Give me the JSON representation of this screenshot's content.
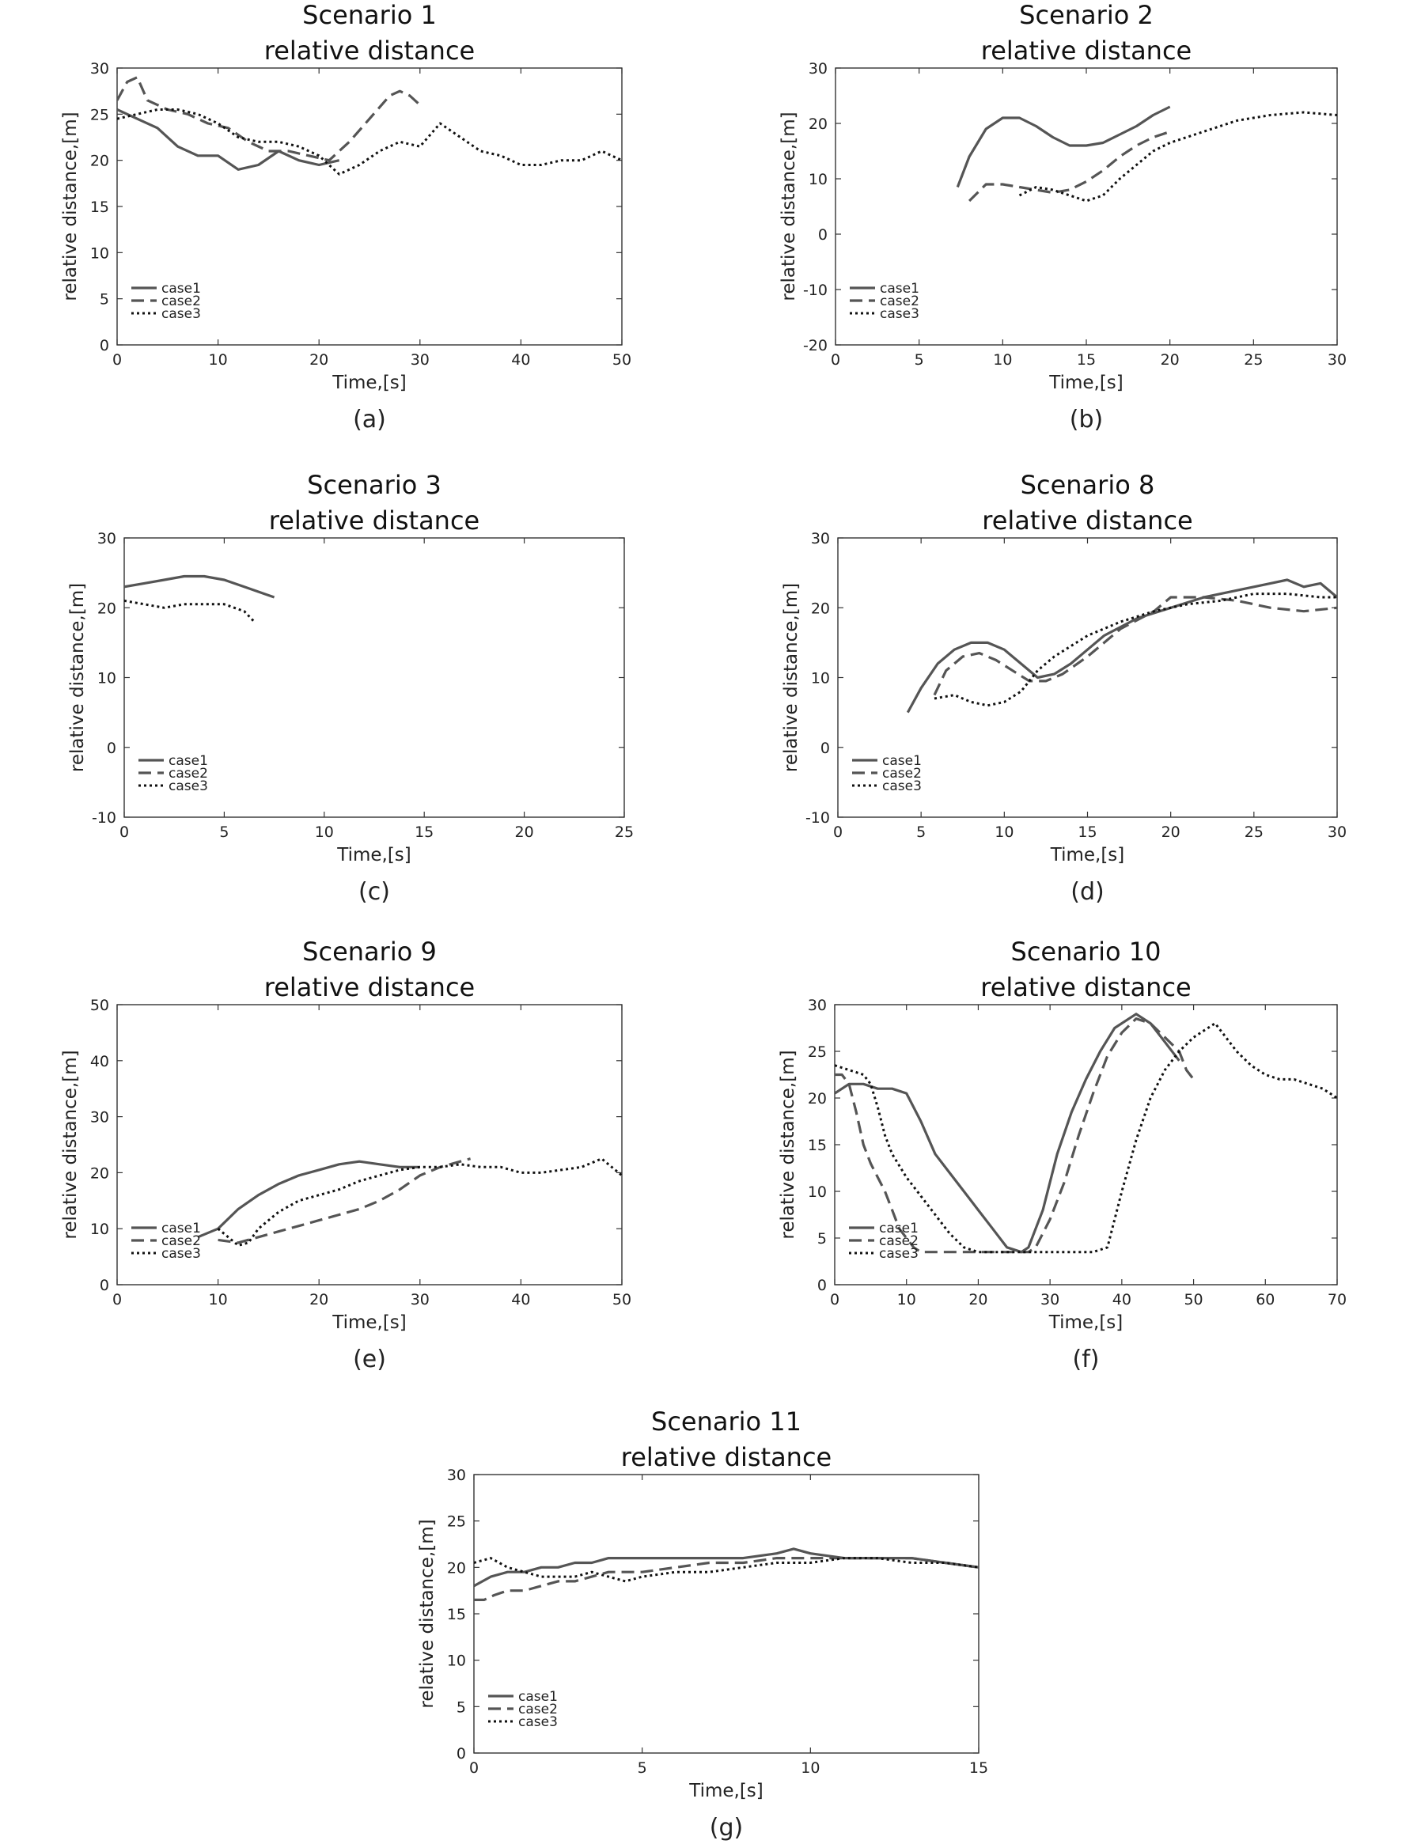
{
  "colors": {
    "case1": "#555555",
    "case2": "#555555",
    "case3": "#111111",
    "axes": "#333333"
  },
  "chart_data": [
    {
      "type": "line",
      "caption": "(a)",
      "title": [
        "Scenario 1",
        "relative distance"
      ],
      "xlabel": "Time,[s]",
      "ylabel": "relative distance,[m]",
      "xlim": [
        0,
        50
      ],
      "ylim": [
        0,
        30
      ],
      "xticks": [
        0,
        10,
        20,
        30,
        40,
        50
      ],
      "yticks": [
        0,
        5,
        10,
        15,
        20,
        25,
        30
      ],
      "grid": false,
      "legend_position": "bottom-left",
      "series": [
        {
          "name": "case1",
          "style": "solid",
          "x": [
            0,
            2,
            4,
            6,
            8,
            10,
            12,
            14,
            16,
            18,
            20,
            22
          ],
          "y": [
            25.5,
            24.5,
            23.5,
            21.5,
            20.5,
            20.5,
            19.0,
            19.5,
            21.0,
            20.0,
            19.5,
            20.0
          ]
        },
        {
          "name": "case2",
          "style": "dashed",
          "x": [
            0,
            1,
            2,
            3,
            5,
            7,
            9,
            11,
            13,
            15,
            17,
            19,
            21,
            23,
            25,
            27,
            28,
            29,
            30
          ],
          "y": [
            26.5,
            28.5,
            29.0,
            26.5,
            25.5,
            25.0,
            24.0,
            23.5,
            22.0,
            21.0,
            21.0,
            20.5,
            20.0,
            22.0,
            24.5,
            27.0,
            27.5,
            27.0,
            26.0
          ]
        },
        {
          "name": "case3",
          "style": "dotted",
          "x": [
            0,
            2,
            4,
            6,
            8,
            10,
            12,
            14,
            16,
            18,
            20,
            22,
            24,
            26,
            28,
            30,
            32,
            34,
            36,
            38,
            40,
            42,
            44,
            46,
            48,
            50
          ],
          "y": [
            24.5,
            25.0,
            25.5,
            25.5,
            25.0,
            24.0,
            22.5,
            22.0,
            22.0,
            21.5,
            20.5,
            18.5,
            19.5,
            21.0,
            22.0,
            21.5,
            24.0,
            22.5,
            21.0,
            20.5,
            19.5,
            19.5,
            20.0,
            20.0,
            21.0,
            20.0
          ]
        }
      ]
    },
    {
      "type": "line",
      "caption": "(b)",
      "title": [
        "Scenario 2",
        "relative distance"
      ],
      "xlabel": "Time,[s]",
      "ylabel": "relative distance,[m]",
      "xlim": [
        0,
        30
      ],
      "ylim": [
        -20,
        30
      ],
      "xticks": [
        0,
        5,
        10,
        15,
        20,
        25,
        30
      ],
      "yticks": [
        -20,
        -10,
        0,
        10,
        20,
        30
      ],
      "grid": false,
      "legend_position": "bottom-left",
      "series": [
        {
          "name": "case1",
          "style": "solid",
          "x": [
            7.3,
            8,
            9,
            10,
            11,
            12,
            13,
            14,
            15,
            16,
            17,
            18,
            19,
            20
          ],
          "y": [
            8.5,
            14.0,
            19.0,
            21.0,
            21.0,
            19.5,
            17.5,
            16.0,
            16.0,
            16.5,
            18.0,
            19.5,
            21.5,
            23.0
          ]
        },
        {
          "name": "case2",
          "style": "dashed",
          "x": [
            8,
            9,
            10,
            11,
            12,
            13,
            14,
            15,
            16,
            17,
            18,
            19,
            20
          ],
          "y": [
            6.0,
            9.0,
            9.0,
            8.5,
            8.0,
            7.5,
            8.0,
            9.5,
            11.5,
            14.0,
            16.0,
            17.5,
            18.5
          ]
        },
        {
          "name": "case3",
          "style": "dotted",
          "x": [
            11,
            12,
            13,
            14,
            15,
            16,
            17,
            18,
            19,
            20,
            22,
            24,
            26,
            28,
            30
          ],
          "y": [
            7.0,
            8.5,
            8.0,
            7.0,
            6.0,
            7.0,
            10.0,
            12.5,
            15.0,
            16.5,
            18.5,
            20.5,
            21.5,
            22.0,
            21.5
          ]
        }
      ]
    },
    {
      "type": "line",
      "caption": "(c)",
      "title": [
        "Scenario 3",
        "relative distance"
      ],
      "xlabel": "Time,[s]",
      "ylabel": "relative distance,[m]",
      "xlim": [
        0,
        25
      ],
      "ylim": [
        -10,
        30
      ],
      "xticks": [
        0,
        5,
        10,
        15,
        20,
        25
      ],
      "yticks": [
        -10,
        0,
        10,
        20,
        30
      ],
      "grid": false,
      "legend_position": "bottom-left",
      "series": [
        {
          "name": "case1",
          "style": "solid",
          "x": [
            0,
            1,
            2,
            3,
            4,
            5,
            6,
            7,
            7.5
          ],
          "y": [
            23.0,
            23.5,
            24.0,
            24.5,
            24.5,
            24.0,
            23.0,
            22.0,
            21.5
          ]
        },
        {
          "name": "case2",
          "style": "dashed",
          "x": [],
          "y": []
        },
        {
          "name": "case3",
          "style": "dotted",
          "x": [
            0,
            1,
            2,
            3,
            4,
            5,
            6,
            6.5
          ],
          "y": [
            21.0,
            20.5,
            20.0,
            20.5,
            20.5,
            20.5,
            19.5,
            18.0
          ]
        }
      ]
    },
    {
      "type": "line",
      "caption": "(d)",
      "title": [
        "Scenario 8",
        "relative distance"
      ],
      "xlabel": "Time,[s]",
      "ylabel": "relative distance,[m]",
      "xlim": [
        0,
        30
      ],
      "ylim": [
        -10,
        30
      ],
      "xticks": [
        0,
        5,
        10,
        15,
        20,
        25,
        30
      ],
      "yticks": [
        -10,
        0,
        10,
        20,
        30
      ],
      "grid": false,
      "legend_position": "bottom-left",
      "series": [
        {
          "name": "case1",
          "style": "solid",
          "x": [
            4.2,
            5,
            6,
            7,
            8,
            9,
            10,
            11,
            12,
            13,
            14,
            15,
            16,
            18,
            20,
            22,
            24,
            26,
            27,
            28,
            29,
            30
          ],
          "y": [
            5.0,
            8.5,
            12.0,
            14.0,
            15.0,
            15.0,
            14.0,
            12.0,
            10.0,
            10.5,
            12.0,
            14.0,
            16.0,
            18.5,
            20.0,
            21.5,
            22.5,
            23.5,
            24.0,
            23.0,
            23.5,
            21.5
          ]
        },
        {
          "name": "case2",
          "style": "dashed",
          "x": [
            5.8,
            6.5,
            7.5,
            8.5,
            9.5,
            10.5,
            11.5,
            12.5,
            13.5,
            15,
            17,
            19,
            20,
            22,
            24,
            26,
            28,
            30
          ],
          "y": [
            7.5,
            11.0,
            13.0,
            13.5,
            12.5,
            11.0,
            9.5,
            9.5,
            10.5,
            13.0,
            17.0,
            19.5,
            21.5,
            21.5,
            21.0,
            20.0,
            19.5,
            20.0
          ]
        },
        {
          "name": "case3",
          "style": "dotted",
          "x": [
            5.8,
            7,
            8,
            9,
            10,
            11,
            12,
            13,
            15,
            17,
            19,
            21,
            23,
            25,
            27,
            29,
            30
          ],
          "y": [
            7.0,
            7.5,
            6.5,
            6.0,
            6.5,
            8.0,
            11.0,
            13.0,
            16.0,
            18.0,
            19.5,
            20.5,
            21.0,
            22.0,
            22.0,
            21.5,
            21.5
          ]
        }
      ]
    },
    {
      "type": "line",
      "caption": "(e)",
      "title": [
        "Scenario 9",
        "relative distance"
      ],
      "xlabel": "Time,[s]",
      "ylabel": "relative distance,[m]",
      "xlim": [
        0,
        50
      ],
      "ylim": [
        0,
        50
      ],
      "xticks": [
        0,
        10,
        20,
        30,
        40,
        50
      ],
      "yticks": [
        0,
        10,
        20,
        30,
        40,
        50
      ],
      "grid": false,
      "legend_position": "bottom-left",
      "series": [
        {
          "name": "case1",
          "style": "solid",
          "x": [
            8,
            10,
            12,
            14,
            16,
            18,
            20,
            22,
            24,
            26,
            28,
            30
          ],
          "y": [
            8.5,
            10.0,
            13.5,
            16.0,
            18.0,
            19.5,
            20.5,
            21.5,
            22.0,
            21.5,
            21.0,
            21.0
          ]
        },
        {
          "name": "case2",
          "style": "dashed",
          "x": [
            10,
            12,
            14,
            16,
            18,
            20,
            22,
            24,
            26,
            28,
            30,
            32,
            34,
            35
          ],
          "y": [
            8.0,
            7.5,
            8.5,
            9.5,
            10.5,
            11.5,
            12.5,
            13.5,
            15.0,
            17.0,
            19.5,
            21.0,
            22.0,
            22.5
          ]
        },
        {
          "name": "case3",
          "style": "dotted",
          "x": [
            10,
            11,
            12,
            13,
            14,
            16,
            18,
            20,
            22,
            24,
            26,
            28,
            30,
            32,
            34,
            36,
            38,
            40,
            42,
            44,
            46,
            48,
            50
          ],
          "y": [
            10.0,
            8.5,
            7.0,
            7.5,
            10.0,
            13.0,
            15.0,
            16.0,
            17.0,
            18.5,
            19.5,
            20.5,
            21.0,
            21.0,
            21.5,
            21.0,
            21.0,
            20.0,
            20.0,
            20.5,
            21.0,
            22.5,
            19.5
          ]
        }
      ]
    },
    {
      "type": "line",
      "caption": "(f)",
      "title": [
        "Scenario 10",
        "relative distance"
      ],
      "xlabel": "Time,[s]",
      "ylabel": "relative distance,[m]",
      "xlim": [
        0,
        70
      ],
      "ylim": [
        0,
        30
      ],
      "xticks": [
        0,
        10,
        20,
        30,
        40,
        50,
        60,
        70
      ],
      "yticks": [
        0,
        5,
        10,
        15,
        20,
        25,
        30
      ],
      "grid": false,
      "legend_position": "bottom-left",
      "series": [
        {
          "name": "case1",
          "style": "solid",
          "x": [
            0,
            2,
            4,
            6,
            8,
            10,
            12,
            14,
            16,
            18,
            20,
            22,
            24,
            26,
            27,
            29,
            31,
            33,
            35,
            37,
            39,
            41,
            42,
            44,
            46,
            48
          ],
          "y": [
            20.5,
            21.5,
            21.5,
            21.0,
            21.0,
            20.5,
            17.5,
            14.0,
            12.0,
            10.0,
            8.0,
            6.0,
            4.0,
            3.5,
            4.0,
            8.0,
            14.0,
            18.5,
            22.0,
            25.0,
            27.5,
            28.5,
            29.0,
            28.0,
            26.0,
            24.0
          ]
        },
        {
          "name": "case2",
          "style": "dashed",
          "x": [
            0,
            1,
            2,
            3,
            4,
            5,
            6,
            7,
            8,
            9,
            10,
            11,
            12,
            16,
            20,
            24,
            26,
            27,
            28,
            30,
            32,
            34,
            36,
            38,
            40,
            42,
            44,
            46,
            48,
            49,
            50
          ],
          "y": [
            22.5,
            22.5,
            21.5,
            18.5,
            15.0,
            13.0,
            11.5,
            10.0,
            8.0,
            6.0,
            5.0,
            4.0,
            3.5,
            3.5,
            3.5,
            3.5,
            3.5,
            3.5,
            4.0,
            7.0,
            11.0,
            16.0,
            20.5,
            24.5,
            27.0,
            28.5,
            28.0,
            26.5,
            25.0,
            23.0,
            22.0
          ]
        },
        {
          "name": "case3",
          "style": "dotted",
          "x": [
            0,
            2,
            4,
            5,
            6,
            7,
            8,
            10,
            12,
            14,
            16,
            18,
            20,
            24,
            28,
            32,
            36,
            38,
            40,
            42,
            44,
            46,
            48,
            50,
            52,
            53,
            54,
            56,
            58,
            60,
            62,
            64,
            66,
            68,
            70
          ],
          "y": [
            23.5,
            23.0,
            22.5,
            21.5,
            19.0,
            16.0,
            14.0,
            11.5,
            9.5,
            7.5,
            5.5,
            4.0,
            3.5,
            3.5,
            3.5,
            3.5,
            3.5,
            4.0,
            10.0,
            15.5,
            20.0,
            23.0,
            25.0,
            26.5,
            27.5,
            28.0,
            27.0,
            25.0,
            23.5,
            22.5,
            22.0,
            22.0,
            21.5,
            21.0,
            20.0
          ]
        }
      ]
    },
    {
      "type": "line",
      "caption": "(g)",
      "title": [
        "Scenario 11",
        "relative distance"
      ],
      "xlabel": "Time,[s]",
      "ylabel": "relative distance,[m]",
      "xlim": [
        0,
        15
      ],
      "ylim": [
        0,
        30
      ],
      "xticks": [
        0,
        5,
        10,
        15
      ],
      "yticks": [
        0,
        5,
        10,
        15,
        20,
        25,
        30
      ],
      "grid": false,
      "legend_position": "bottom-left",
      "series": [
        {
          "name": "case1",
          "style": "solid",
          "x": [
            0,
            0.5,
            1,
            1.5,
            2,
            2.5,
            3,
            3.5,
            4,
            4.5,
            5,
            6,
            7,
            8,
            9,
            9.5,
            10,
            11,
            12,
            13,
            14,
            15
          ],
          "y": [
            18.0,
            19.0,
            19.5,
            19.5,
            20.0,
            20.0,
            20.5,
            20.5,
            21.0,
            21.0,
            21.0,
            21.0,
            21.0,
            21.0,
            21.5,
            22.0,
            21.5,
            21.0,
            21.0,
            21.0,
            20.5,
            20.0
          ]
        },
        {
          "name": "case2",
          "style": "dashed",
          "x": [
            0,
            0.3,
            0.6,
            1,
            1.5,
            2,
            2.5,
            3,
            3.5,
            4,
            5,
            6,
            7,
            8,
            9,
            10,
            11,
            12,
            13,
            14,
            15
          ],
          "y": [
            16.5,
            16.5,
            17.0,
            17.5,
            17.5,
            18.0,
            18.5,
            18.5,
            19.0,
            19.5,
            19.5,
            20.0,
            20.5,
            20.5,
            21.0,
            21.0,
            21.0,
            21.0,
            21.0,
            20.5,
            20.0
          ]
        },
        {
          "name": "case3",
          "style": "dotted",
          "x": [
            0,
            0.5,
            1,
            1.5,
            2,
            2.5,
            3,
            3.5,
            4,
            4.5,
            5,
            6,
            7,
            8,
            9,
            10,
            11,
            12,
            13,
            14,
            15
          ],
          "y": [
            20.5,
            21.0,
            20.0,
            19.5,
            19.0,
            19.0,
            19.0,
            19.5,
            19.0,
            18.5,
            19.0,
            19.5,
            19.5,
            20.0,
            20.5,
            20.5,
            21.0,
            21.0,
            20.5,
            20.5,
            20.0
          ]
        }
      ]
    }
  ]
}
